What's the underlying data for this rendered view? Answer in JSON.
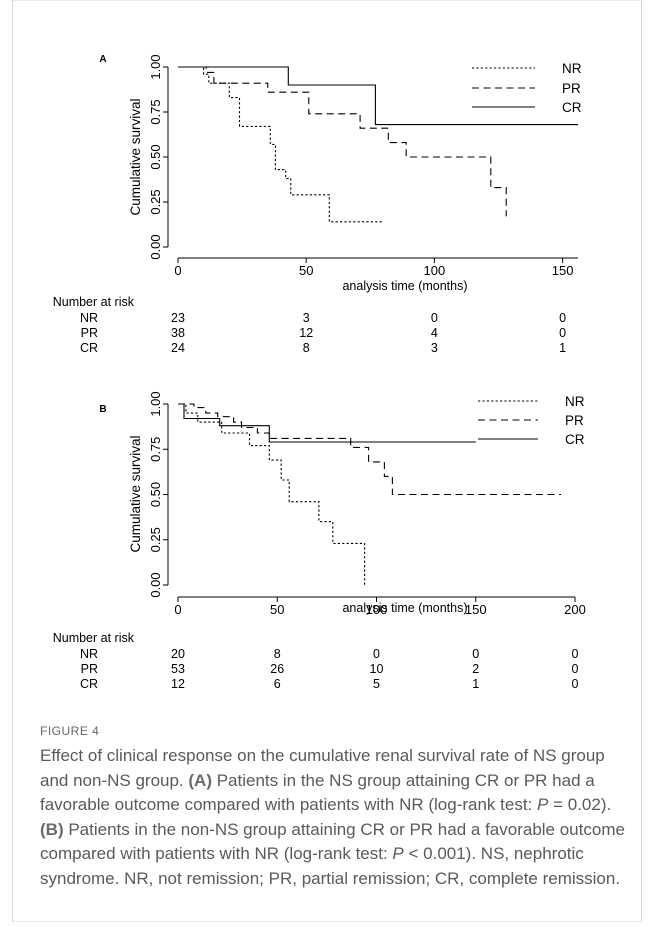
{
  "figure": {
    "label": "FIGURE 4",
    "caption_parts": [
      {
        "t": "Effect of clinical response on the cumulative renal survival rate of NS group and non-NS group. ",
        "b": false,
        "i": false
      },
      {
        "t": "(A)",
        "b": true,
        "i": false
      },
      {
        "t": " Patients in the NS group attaining CR or PR had a favorable outcome compared with patients with NR (log-rank test: ",
        "b": false,
        "i": false
      },
      {
        "t": "P",
        "b": false,
        "i": true
      },
      {
        "t": " = 0.02). ",
        "b": false,
        "i": false
      },
      {
        "t": "(B)",
        "b": true,
        "i": false
      },
      {
        "t": " Patients in the non-NS group attaining CR or PR had a favorable outcome compared with patients with NR (log-rank test: ",
        "b": false,
        "i": false
      },
      {
        "t": "P",
        "b": false,
        "i": true
      },
      {
        "t": " < 0.001). NS, nephrotic syndrome. NR, not remission; PR, partial remission; CR, complete remission.",
        "b": false,
        "i": false
      }
    ]
  },
  "chart_data": [
    {
      "type": "line",
      "panel": "A",
      "ylabel": "Cumulative survival",
      "xlabel": "analysis time (months)",
      "xlim": [
        0,
        156
      ],
      "ylim": [
        0,
        1
      ],
      "x_ticks": [
        "0",
        "50",
        "100",
        "150"
      ],
      "y_ticks": [
        "0.00",
        "0.25",
        "0.50",
        "0.75",
        "1.00"
      ],
      "legend": "top-right",
      "series": [
        {
          "name": "NR",
          "style": "dotted",
          "points": [
            [
              0,
              1
            ],
            [
              10,
              1
            ],
            [
              10,
              0.96
            ],
            [
              12,
              0.96
            ],
            [
              12,
              0.91
            ],
            [
              20,
              0.91
            ],
            [
              20,
              0.83
            ],
            [
              24,
              0.83
            ],
            [
              24,
              0.67
            ],
            [
              36,
              0.67
            ],
            [
              36,
              0.57
            ],
            [
              38,
              0.57
            ],
            [
              38,
              0.43
            ],
            [
              42,
              0.43
            ],
            [
              42,
              0.38
            ],
            [
              44,
              0.38
            ],
            [
              44,
              0.29
            ],
            [
              59,
              0.29
            ],
            [
              59,
              0.14
            ],
            [
              80,
              0.14
            ]
          ]
        },
        {
          "name": "PR",
          "style": "dashed",
          "points": [
            [
              0,
              1
            ],
            [
              11,
              1
            ],
            [
              11,
              0.97
            ],
            [
              14,
              0.97
            ],
            [
              14,
              0.91
            ],
            [
              35,
              0.91
            ],
            [
              35,
              0.86
            ],
            [
              51,
              0.86
            ],
            [
              51,
              0.74
            ],
            [
              71,
              0.74
            ],
            [
              71,
              0.66
            ],
            [
              82,
              0.66
            ],
            [
              82,
              0.58
            ],
            [
              89,
              0.58
            ],
            [
              89,
              0.5
            ],
            [
              122,
              0.5
            ],
            [
              122,
              0.33
            ],
            [
              128,
              0.33
            ],
            [
              128,
              0.17
            ]
          ]
        },
        {
          "name": "CR",
          "style": "solid",
          "points": [
            [
              0,
              1
            ],
            [
              43,
              1
            ],
            [
              43,
              0.9
            ],
            [
              77,
              0.9
            ],
            [
              77,
              0.68
            ],
            [
              156,
              0.68
            ]
          ]
        }
      ],
      "risk_table": {
        "title": "Number at risk",
        "times": [
          0,
          50,
          100,
          150
        ],
        "rows": [
          {
            "label": "NR",
            "values": [
              "23",
              "3",
              "0",
              "0"
            ]
          },
          {
            "label": "PR",
            "values": [
              "38",
              "12",
              "4",
              "0"
            ]
          },
          {
            "label": "CR",
            "values": [
              "24",
              "8",
              "3",
              "1"
            ]
          }
        ]
      }
    },
    {
      "type": "line",
      "panel": "B",
      "ylabel": "Cumulative survival",
      "xlabel": "analysis time (months)",
      "xlim": [
        0,
        200
      ],
      "ylim": [
        0,
        1
      ],
      "x_ticks": [
        "0",
        "50",
        "100",
        "150",
        "200"
      ],
      "y_ticks": [
        "0.00",
        "0.25",
        "0.50",
        "0.75",
        "1.00"
      ],
      "legend": "top-right",
      "series": [
        {
          "name": "NR",
          "style": "dotted",
          "points": [
            [
              0,
              1
            ],
            [
              4,
              1
            ],
            [
              4,
              0.95
            ],
            [
              10,
              0.95
            ],
            [
              10,
              0.9
            ],
            [
              22,
              0.9
            ],
            [
              22,
              0.84
            ],
            [
              36,
              0.84
            ],
            [
              36,
              0.77
            ],
            [
              46,
              0.77
            ],
            [
              46,
              0.69
            ],
            [
              52,
              0.69
            ],
            [
              52,
              0.58
            ],
            [
              56,
              0.58
            ],
            [
              56,
              0.46
            ],
            [
              71,
              0.46
            ],
            [
              71,
              0.35
            ],
            [
              78,
              0.35
            ],
            [
              78,
              0.23
            ],
            [
              94,
              0.23
            ],
            [
              94,
              0
            ]
          ]
        },
        {
          "name": "PR",
          "style": "dashed",
          "points": [
            [
              0,
              1
            ],
            [
              8,
              1
            ],
            [
              8,
              0.98
            ],
            [
              14,
              0.98
            ],
            [
              14,
              0.95
            ],
            [
              20,
              0.95
            ],
            [
              20,
              0.93
            ],
            [
              28,
              0.93
            ],
            [
              28,
              0.9
            ],
            [
              32,
              0.9
            ],
            [
              32,
              0.87
            ],
            [
              40,
              0.87
            ],
            [
              40,
              0.84
            ],
            [
              46,
              0.84
            ],
            [
              46,
              0.81
            ],
            [
              87,
              0.81
            ],
            [
              87,
              0.76
            ],
            [
              96,
              0.76
            ],
            [
              96,
              0.68
            ],
            [
              104,
              0.68
            ],
            [
              104,
              0.6
            ],
            [
              108,
              0.6
            ],
            [
              108,
              0.5
            ],
            [
              193,
              0.5
            ]
          ]
        },
        {
          "name": "CR",
          "style": "solid",
          "points": [
            [
              0,
              1
            ],
            [
              3,
              1
            ],
            [
              3,
              0.92
            ],
            [
              21,
              0.92
            ],
            [
              21,
              0.88
            ],
            [
              46,
              0.88
            ],
            [
              46,
              0.79
            ],
            [
              150,
              0.79
            ]
          ]
        }
      ],
      "risk_table": {
        "title": "Number at risk",
        "times": [
          0,
          50,
          100,
          150,
          200
        ],
        "rows": [
          {
            "label": "NR",
            "values": [
              "20",
              "8",
              "0",
              "0",
              "0"
            ]
          },
          {
            "label": "PR",
            "values": [
              "53",
              "26",
              "10",
              "2",
              "0"
            ]
          },
          {
            "label": "CR",
            "values": [
              "12",
              "6",
              "5",
              "1",
              "0"
            ]
          }
        ]
      }
    }
  ]
}
